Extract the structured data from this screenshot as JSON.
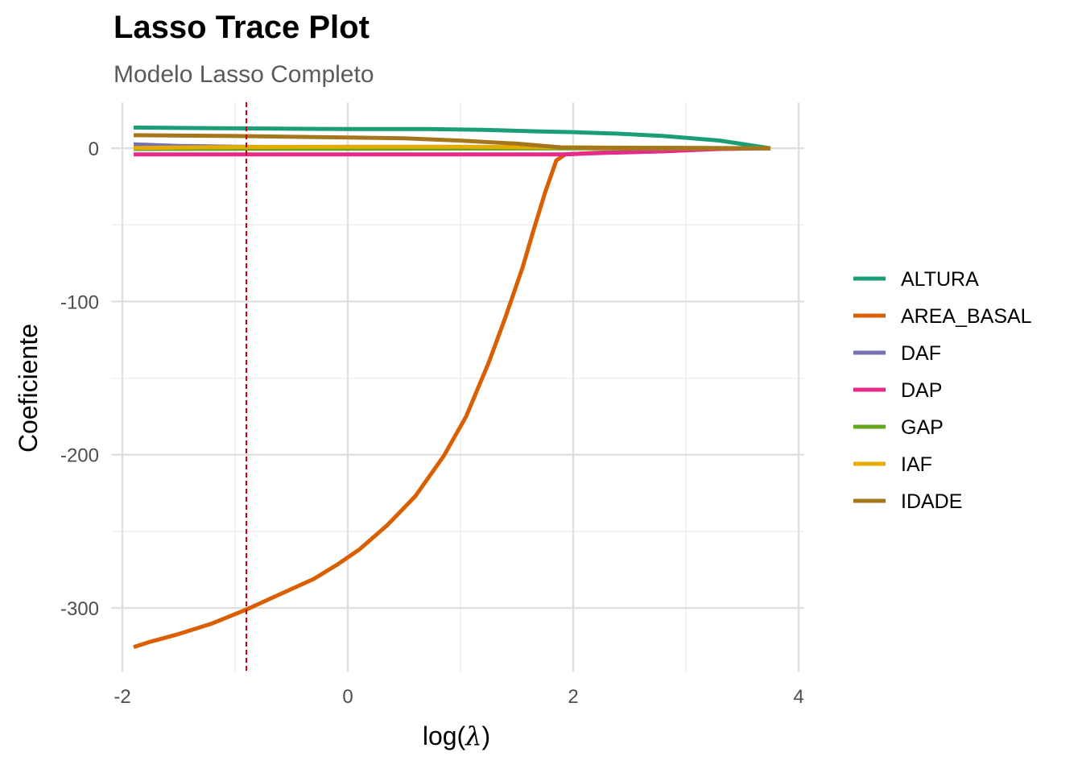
{
  "chart_data": {
    "type": "line",
    "title": "Lasso Trace Plot",
    "subtitle": "Modelo Lasso Completo",
    "xlabel": "log(λ)",
    "xlabel_parts": {
      "prefix": "log(",
      "symbol": "λ",
      "suffix": ")"
    },
    "ylabel": "Coeficiente",
    "xlim": [
      -2.1,
      4.05
    ],
    "ylim": [
      -342,
      30
    ],
    "x_ticks": [
      -2,
      0,
      2,
      4
    ],
    "y_ticks": [
      0,
      -100,
      -200,
      -300
    ],
    "grid": true,
    "legend_position": "right",
    "vline": {
      "x": -0.9,
      "color": "#cc0000",
      "style": "dashed"
    },
    "series": [
      {
        "name": "ALTURA",
        "color": "#1b9e77",
        "points": [
          [
            -1.9,
            13.5
          ],
          [
            -1,
            13
          ],
          [
            0,
            12.5
          ],
          [
            0.7,
            12.5
          ],
          [
            1.2,
            12
          ],
          [
            1.7,
            11
          ],
          [
            2,
            10.5
          ],
          [
            2.4,
            9.5
          ],
          [
            2.8,
            8
          ],
          [
            3.3,
            5
          ],
          [
            3.75,
            0
          ]
        ]
      },
      {
        "name": "AREA_BASAL",
        "color": "#d95f02",
        "points": [
          [
            -1.9,
            -325.5
          ],
          [
            -1.75,
            -322
          ],
          [
            -1.5,
            -317
          ],
          [
            -1.2,
            -310
          ],
          [
            -0.9,
            -301
          ],
          [
            -0.6,
            -291
          ],
          [
            -0.3,
            -281
          ],
          [
            -0.1,
            -272
          ],
          [
            0.1,
            -262
          ],
          [
            0.35,
            -246
          ],
          [
            0.6,
            -227
          ],
          [
            0.85,
            -201
          ],
          [
            1.05,
            -175
          ],
          [
            1.25,
            -140
          ],
          [
            1.4,
            -110
          ],
          [
            1.55,
            -78
          ],
          [
            1.65,
            -53
          ],
          [
            1.75,
            -29
          ],
          [
            1.85,
            -8
          ],
          [
            1.93,
            -4
          ],
          [
            2.2,
            -3
          ],
          [
            2.8,
            -2
          ],
          [
            3.3,
            -0.3
          ],
          [
            3.75,
            0
          ]
        ]
      },
      {
        "name": "DAF",
        "color": "#7570b3",
        "points": [
          [
            -1.9,
            2.5
          ],
          [
            -1.5,
            1.5
          ],
          [
            -1,
            1
          ],
          [
            0,
            0.5
          ],
          [
            1,
            0.3
          ],
          [
            2,
            0.2
          ],
          [
            3,
            0.1
          ],
          [
            3.75,
            0
          ]
        ]
      },
      {
        "name": "DAP",
        "color": "#e7298a",
        "points": [
          [
            -1.9,
            -4
          ],
          [
            -1,
            -4
          ],
          [
            0,
            -4
          ],
          [
            1,
            -4
          ],
          [
            1.9,
            -4
          ],
          [
            2.3,
            -3
          ],
          [
            2.8,
            -2
          ],
          [
            3.3,
            -0.5
          ],
          [
            3.75,
            0
          ]
        ]
      },
      {
        "name": "GAP",
        "color": "#66a61e",
        "points": [
          [
            -1.9,
            -0.5
          ],
          [
            0,
            -0.3
          ],
          [
            2,
            -0.1
          ],
          [
            3.75,
            0
          ]
        ]
      },
      {
        "name": "IAF",
        "color": "#e6ab02",
        "points": [
          [
            -1.9,
            0.2
          ],
          [
            -1,
            0.8
          ],
          [
            0,
            1
          ],
          [
            1,
            1
          ],
          [
            2,
            0.5
          ],
          [
            3,
            0.2
          ],
          [
            3.75,
            0
          ]
        ]
      },
      {
        "name": "IDADE",
        "color": "#a6761d",
        "points": [
          [
            -1.9,
            8.5
          ],
          [
            -1,
            8
          ],
          [
            0,
            7
          ],
          [
            0.5,
            6.5
          ],
          [
            1,
            5
          ],
          [
            1.5,
            3
          ],
          [
            1.9,
            0.5
          ],
          [
            2.3,
            0.3
          ],
          [
            3,
            0.2
          ],
          [
            3.75,
            0
          ]
        ]
      }
    ]
  }
}
